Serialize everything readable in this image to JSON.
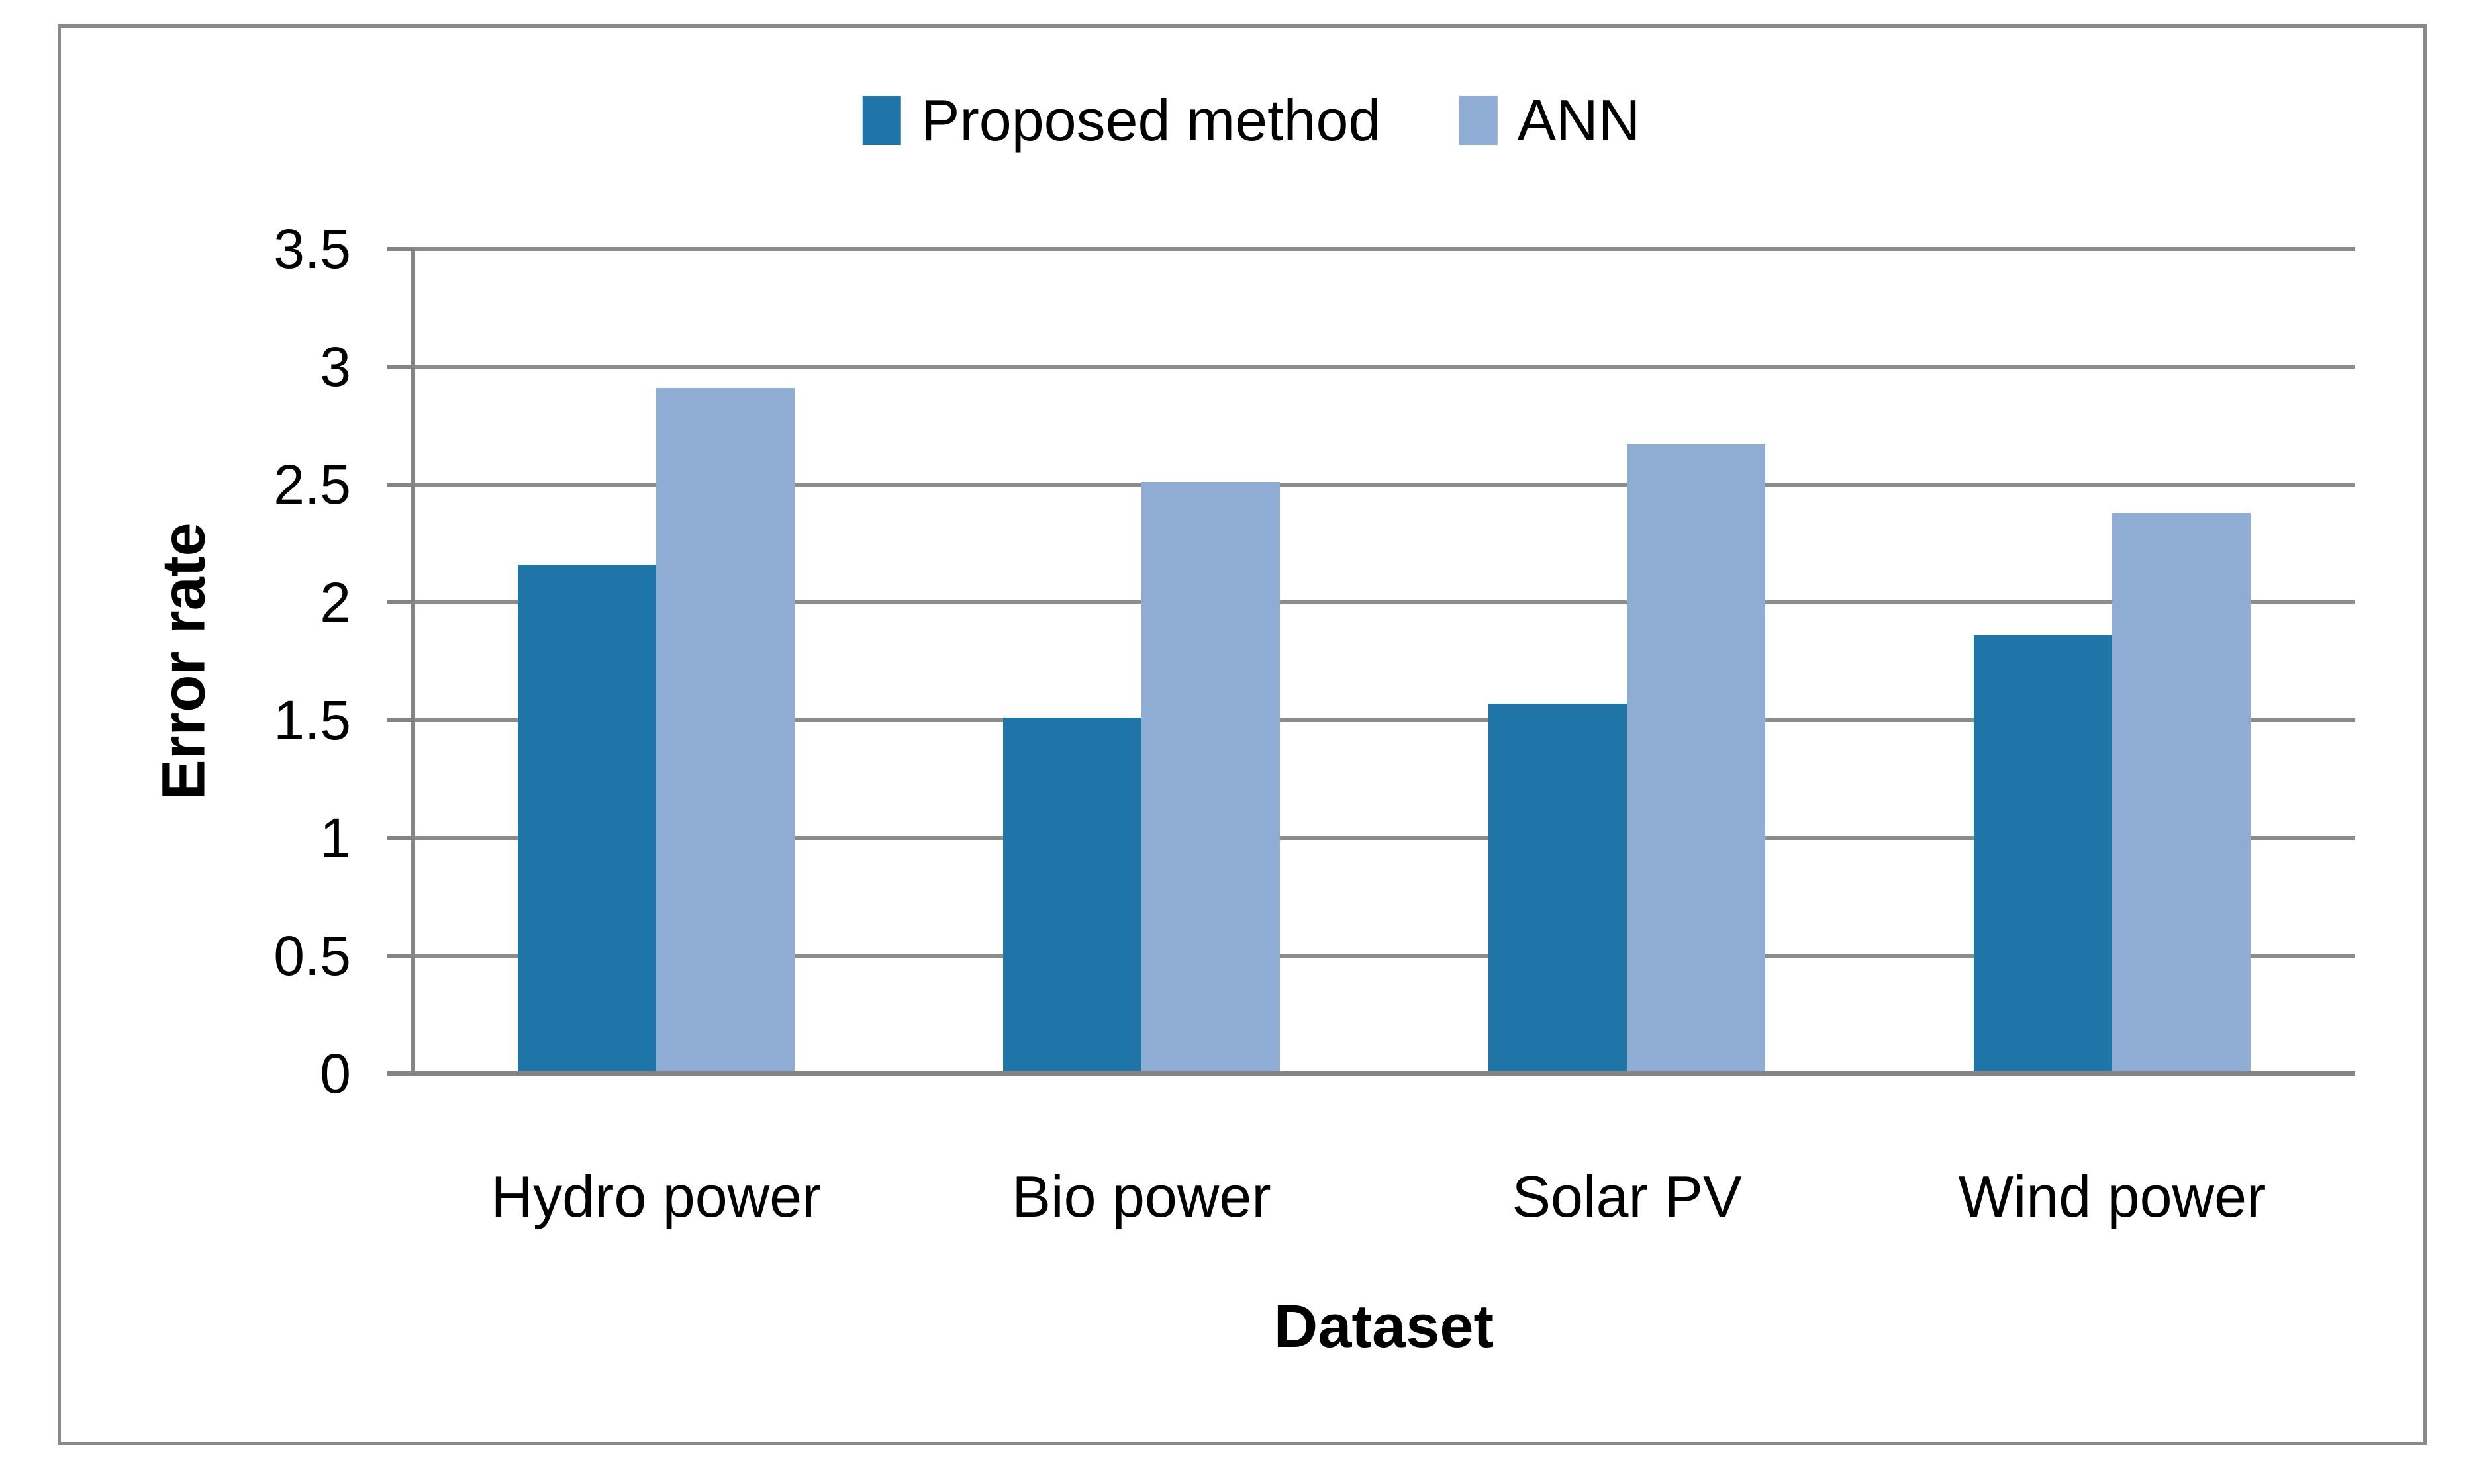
{
  "chart_data": {
    "type": "bar",
    "title": "",
    "categories": [
      "Hydro power",
      "Bio power",
      "Solar PV",
      "Wind power"
    ],
    "series": [
      {
        "name": "Proposed method",
        "color": "#1F74A8",
        "values": [
          2.16,
          1.51,
          1.57,
          1.86
        ]
      },
      {
        "name": "ANN",
        "color": "#8FACD4",
        "values": [
          2.91,
          2.51,
          2.67,
          2.38
        ]
      }
    ],
    "xlabel": "Dataset",
    "ylabel": "Error rate",
    "ylim": [
      0,
      3.5
    ],
    "ytick_step": 0.5,
    "ytick_labels": [
      "0",
      "0.5",
      "1",
      "1.5",
      "2",
      "2.5",
      "3",
      "3.5"
    ],
    "grid": true,
    "legend_position": "top-center",
    "plot_background": "#FFFFFF"
  },
  "frame": {
    "border_color": "#898989",
    "background": "#FFFFFF"
  },
  "axis": {
    "grid_color": "#8C8C8C",
    "line_color": "#848484",
    "text_color": "#000000"
  }
}
